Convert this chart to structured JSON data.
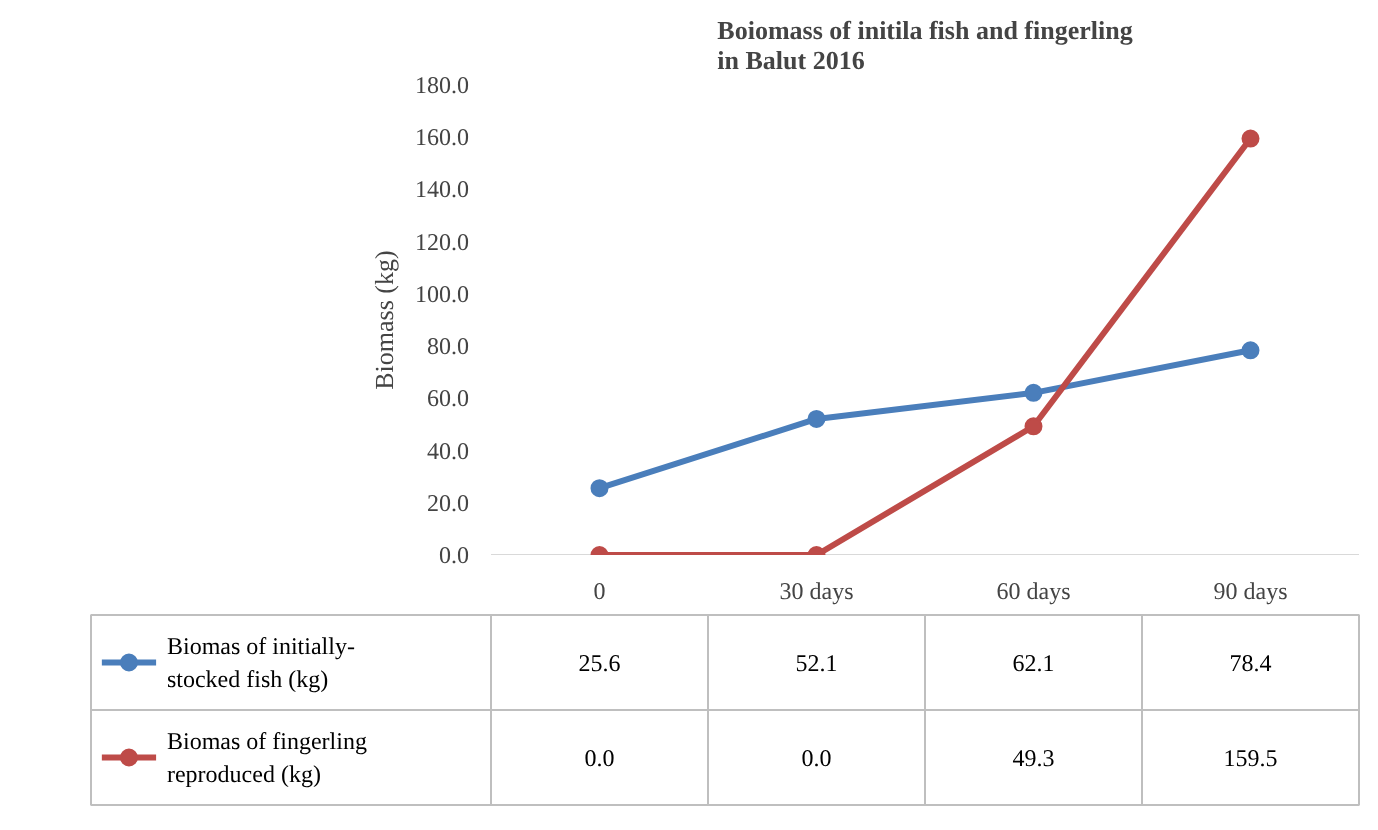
{
  "chart_data": {
    "type": "line",
    "title": "Boiomass of initila fish and fingerling\nin Balut 2016",
    "ylabel": "Biomass (kg)",
    "categories": [
      "0",
      "30 days",
      "60 days",
      "90 days"
    ],
    "series": [
      {
        "name": "Biomas of initially-stocked fish (kg)",
        "color": "#4a7ebb",
        "values": [
          25.6,
          52.1,
          62.1,
          78.4
        ],
        "value_labels": [
          "25.6",
          "52.1",
          "62.1",
          "78.4"
        ]
      },
      {
        "name": "Biomas of fingerling reproduced (kg)",
        "color": "#be4b48",
        "values": [
          0.0,
          0.0,
          49.3,
          159.5
        ],
        "value_labels": [
          "0.0",
          "0.0",
          "49.3",
          "159.5"
        ]
      }
    ],
    "ylim": [
      0,
      180
    ],
    "yticks": [
      {
        "value": 0,
        "label": "0.0"
      },
      {
        "value": 20,
        "label": "20.0"
      },
      {
        "value": 40,
        "label": "40.0"
      },
      {
        "value": 60,
        "label": "60.0"
      },
      {
        "value": 80,
        "label": "80.0"
      },
      {
        "value": 100,
        "label": "100.0"
      },
      {
        "value": 120,
        "label": "120.0"
      },
      {
        "value": 140,
        "label": "140.0"
      },
      {
        "value": 160,
        "label": "160.0"
      },
      {
        "value": 180,
        "label": "180.0"
      }
    ],
    "marker": "circle",
    "line_style": "solid",
    "legend": "bottom",
    "grid": false
  }
}
